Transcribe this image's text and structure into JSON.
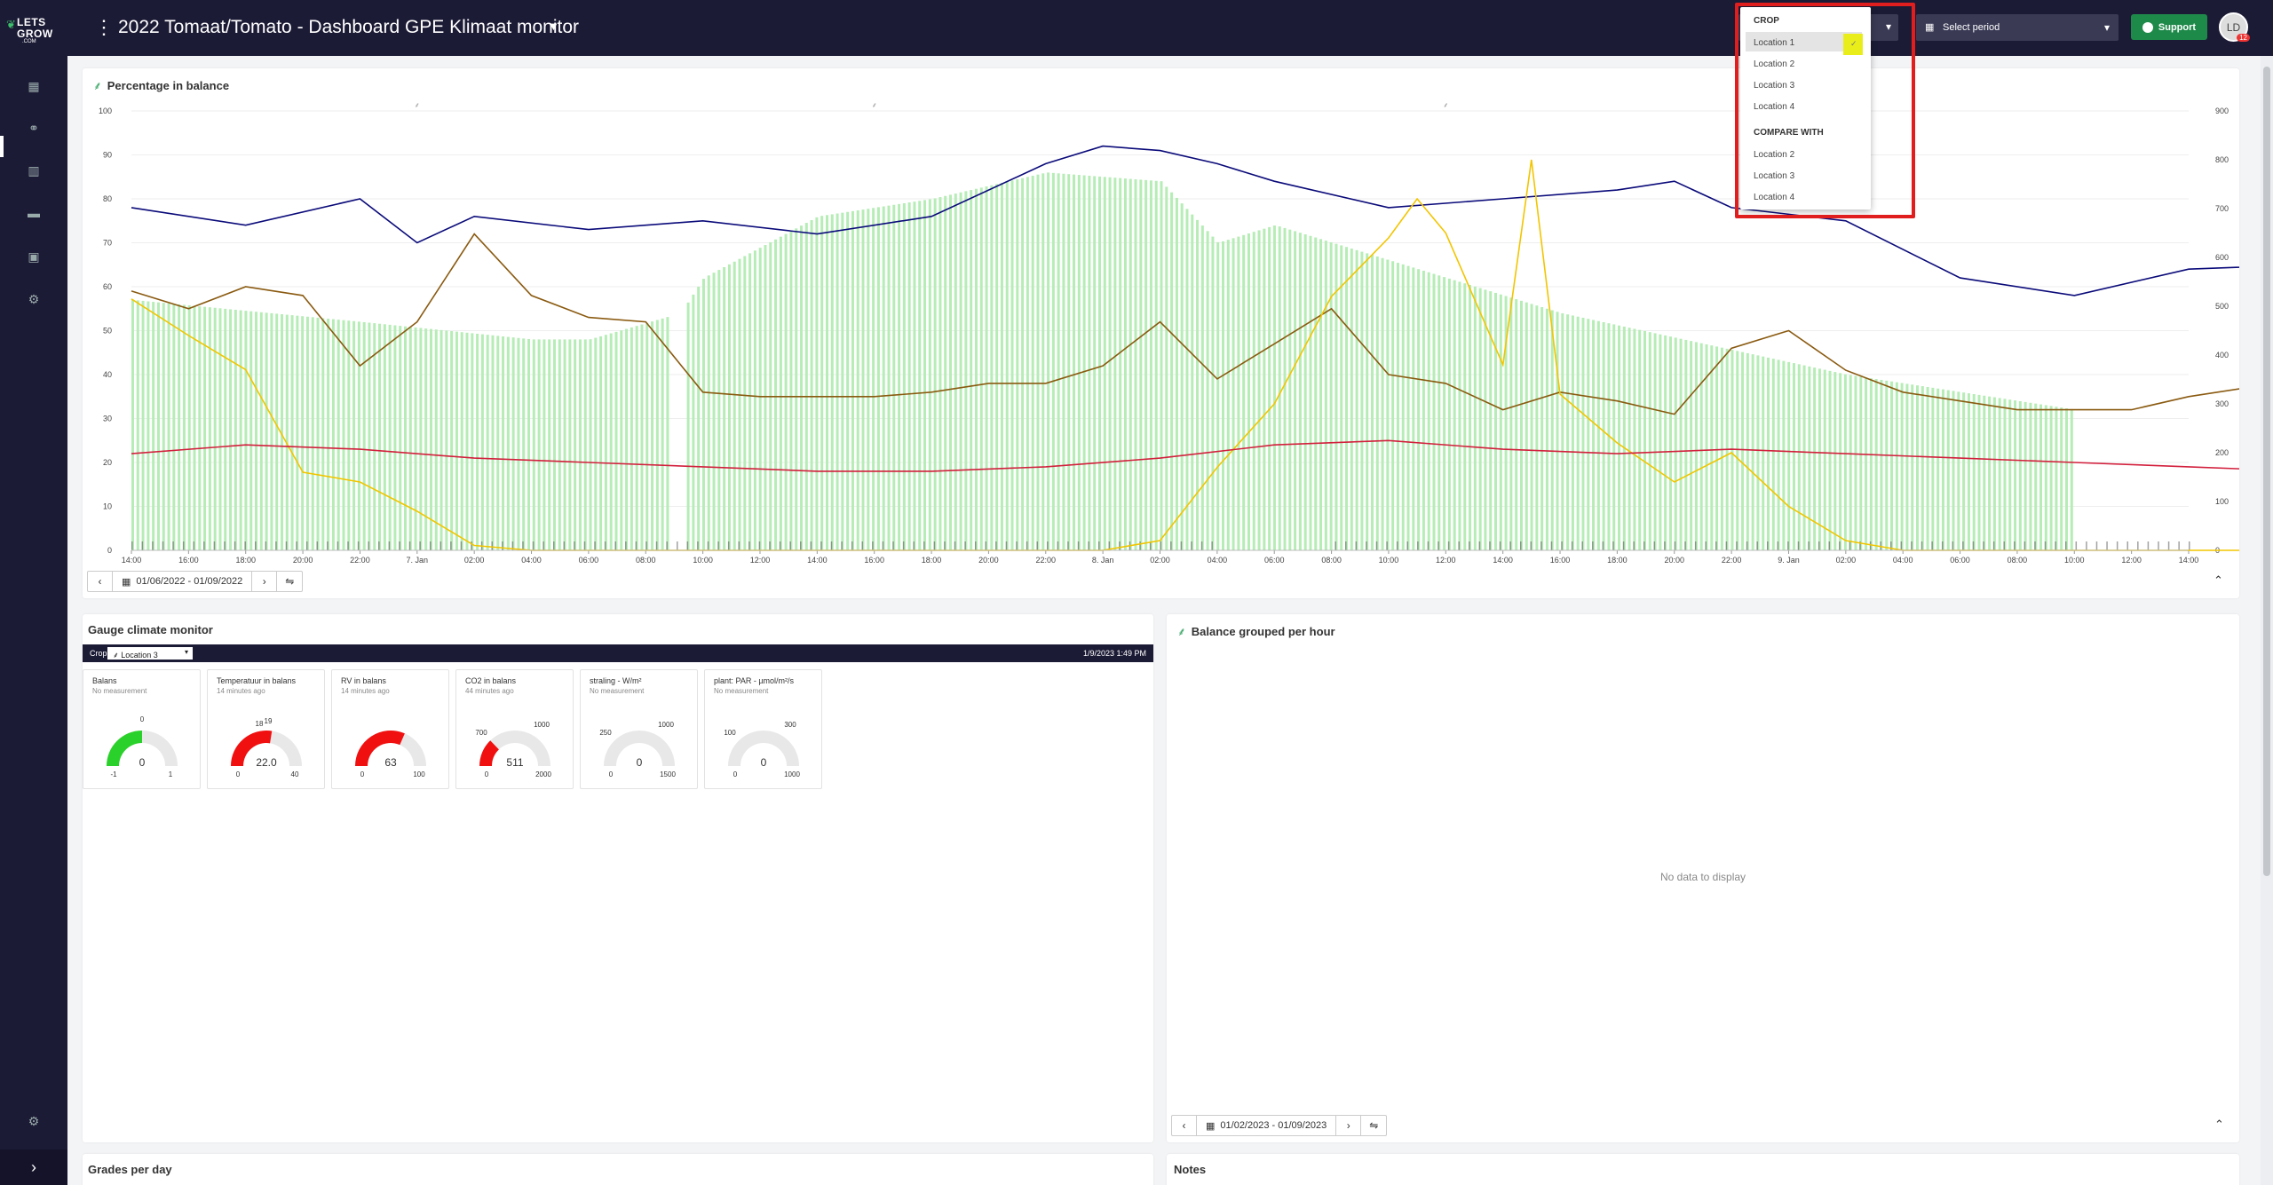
{
  "app": {
    "logo_line1": "LETS",
    "logo_line2": "GROW",
    "logo_line3": ".COM",
    "title": "2022 Tomaat/Tomato - Dashboard GPE Klimaat monitor"
  },
  "header": {
    "period_placeholder": "Select period",
    "support_label": "Support",
    "avatar_initials": "LD",
    "avatar_badge": "12"
  },
  "dropdown": {
    "crop_header": "CROP",
    "crop_options": [
      "Location 1",
      "Location 2",
      "Location 3",
      "Location 4"
    ],
    "selected": "Location 1",
    "compare_header": "COMPARE WITH",
    "compare_options": [
      "Location 2",
      "Location 3",
      "Location 4"
    ]
  },
  "chart_panel": {
    "title": "Percentage in balance",
    "date_range": "01/06/2022 - 01/09/2022"
  },
  "chart_data": {
    "type": "line",
    "y_left": {
      "min": 0,
      "max": 100,
      "ticks": [
        0,
        10,
        20,
        30,
        40,
        50,
        60,
        70,
        80,
        90,
        100
      ]
    },
    "y_right": {
      "min": 0,
      "max": 900,
      "ticks": [
        0,
        100,
        200,
        300,
        400,
        500,
        600,
        700,
        800,
        900
      ]
    },
    "x_ticks": [
      "14:00",
      "16:00",
      "18:00",
      "20:00",
      "22:00",
      "7. Jan",
      "02:00",
      "04:00",
      "06:00",
      "08:00",
      "10:00",
      "12:00",
      "14:00",
      "16:00",
      "18:00",
      "20:00",
      "22:00",
      "8. Jan",
      "02:00",
      "04:00",
      "06:00",
      "08:00",
      "10:00",
      "12:00",
      "14:00",
      "16:00",
      "18:00",
      "20:00",
      "22:00",
      "9. Jan",
      "02:00",
      "04:00",
      "06:00",
      "08:00",
      "10:00",
      "12:00",
      "14:00"
    ],
    "grid": true,
    "colors": {
      "balance": "#b6ecb6",
      "navy": "#0a0a7a",
      "brown": "#8a5a10",
      "yellow": "#f2c500",
      "red": "#d21f3c"
    },
    "balance_bars": [
      {
        "x": 0,
        "value": 57
      },
      {
        "x": 4,
        "value": 52
      },
      {
        "x": 7,
        "value": 48
      },
      {
        "x": 8,
        "value": 48
      },
      {
        "x": 9.6,
        "value": 54
      },
      {
        "x": 10,
        "value": 62
      },
      {
        "x": 12,
        "value": 76
      },
      {
        "x": 14,
        "value": 80
      },
      {
        "x": 16,
        "value": 86
      },
      {
        "x": 18,
        "value": 84
      },
      {
        "x": 19,
        "value": 70
      },
      {
        "x": 20,
        "value": 74
      },
      {
        "x": 25,
        "value": 54
      },
      {
        "x": 30,
        "value": 40
      },
      {
        "x": 34,
        "value": 32
      },
      {
        "x": 39,
        "value": 0
      },
      {
        "x": 40,
        "value": 5
      },
      {
        "x": 42,
        "value": 24
      },
      {
        "x": 43,
        "value": 33
      },
      {
        "x": 45,
        "value": 29
      },
      {
        "x": 50,
        "value": 20
      },
      {
        "x": 58,
        "value": 14
      },
      {
        "x": 63,
        "value": 0
      },
      {
        "x": 64,
        "value": 11
      },
      {
        "x": 66,
        "value": 26
      },
      {
        "x": 67,
        "value": 33
      },
      {
        "x": 69,
        "value": 28
      },
      {
        "x": 72,
        "value": 24
      }
    ],
    "series": [
      {
        "key": "navy",
        "axis": "left",
        "points": [
          [
            0,
            78
          ],
          [
            2,
            74
          ],
          [
            4,
            80
          ],
          [
            5,
            70
          ],
          [
            6,
            76
          ],
          [
            8,
            73
          ],
          [
            10,
            75
          ],
          [
            12,
            72
          ],
          [
            14,
            76
          ],
          [
            16,
            88
          ],
          [
            17,
            92
          ],
          [
            18,
            91
          ],
          [
            19,
            88
          ],
          [
            20,
            84
          ],
          [
            22,
            78
          ],
          [
            24,
            80
          ],
          [
            26,
            82
          ],
          [
            27,
            84
          ],
          [
            28,
            78
          ],
          [
            30,
            75
          ],
          [
            32,
            62
          ],
          [
            34,
            58
          ],
          [
            36,
            64
          ],
          [
            38,
            65
          ],
          [
            40,
            82
          ],
          [
            41,
            88
          ],
          [
            42,
            88
          ],
          [
            43,
            84
          ],
          [
            44,
            75
          ],
          [
            46,
            68
          ],
          [
            48,
            52
          ],
          [
            50,
            50
          ],
          [
            52,
            56
          ],
          [
            54,
            58
          ],
          [
            55,
            64
          ],
          [
            56,
            60
          ],
          [
            58,
            70
          ],
          [
            60,
            74
          ],
          [
            62,
            72
          ],
          [
            64,
            75
          ],
          [
            66,
            80
          ],
          [
            67,
            86
          ],
          [
            68,
            85
          ],
          [
            69,
            80
          ],
          [
            70,
            72
          ],
          [
            72,
            66
          ],
          [
            73,
            63
          ],
          [
            74,
            64
          ],
          [
            75,
            59
          ],
          [
            76,
            62
          ]
        ]
      },
      {
        "key": "brown",
        "axis": "left",
        "points": [
          [
            0,
            59
          ],
          [
            1,
            55
          ],
          [
            2,
            60
          ],
          [
            3,
            58
          ],
          [
            4,
            42
          ],
          [
            5,
            52
          ],
          [
            6,
            72
          ],
          [
            7,
            58
          ],
          [
            8,
            53
          ],
          [
            9,
            52
          ],
          [
            10,
            36
          ],
          [
            11,
            35
          ],
          [
            12,
            35
          ],
          [
            13,
            35
          ],
          [
            14,
            36
          ],
          [
            15,
            38
          ],
          [
            16,
            38
          ],
          [
            17,
            42
          ],
          [
            18,
            52
          ],
          [
            19,
            39
          ],
          [
            20,
            47
          ],
          [
            21,
            55
          ],
          [
            22,
            40
          ],
          [
            23,
            38
          ],
          [
            24,
            32
          ],
          [
            25,
            36
          ],
          [
            26,
            34
          ],
          [
            27,
            31
          ],
          [
            28,
            46
          ],
          [
            29,
            50
          ],
          [
            30,
            41
          ],
          [
            31,
            36
          ],
          [
            32,
            34
          ],
          [
            33,
            32
          ],
          [
            34,
            32
          ],
          [
            35,
            32
          ],
          [
            36,
            35
          ],
          [
            37,
            37
          ],
          [
            38,
            35
          ],
          [
            39,
            32
          ],
          [
            40,
            32
          ],
          [
            41,
            35
          ],
          [
            42,
            36
          ],
          [
            43,
            34
          ],
          [
            44,
            48
          ],
          [
            45,
            40
          ],
          [
            46,
            35
          ],
          [
            47,
            39
          ],
          [
            48,
            46
          ],
          [
            49,
            37
          ],
          [
            50,
            40
          ],
          [
            51,
            44
          ],
          [
            52,
            38
          ],
          [
            53,
            50
          ],
          [
            54,
            44
          ],
          [
            55,
            52
          ],
          [
            56,
            50
          ],
          [
            57,
            62
          ],
          [
            58,
            70
          ],
          [
            59,
            52
          ],
          [
            60,
            34
          ],
          [
            62,
            33
          ],
          [
            64,
            32
          ],
          [
            66,
            31
          ],
          [
            68,
            33
          ],
          [
            69,
            40
          ],
          [
            70,
            65
          ],
          [
            71,
            50
          ],
          [
            72,
            48
          ],
          [
            74,
            50
          ],
          [
            75,
            45
          ],
          [
            76,
            47
          ]
        ]
      },
      {
        "key": "yellow",
        "axis": "right",
        "points": [
          [
            0,
            515
          ],
          [
            1,
            440
          ],
          [
            2,
            370
          ],
          [
            3,
            160
          ],
          [
            4,
            140
          ],
          [
            5,
            80
          ],
          [
            6,
            10
          ],
          [
            7,
            0
          ],
          [
            8,
            0
          ],
          [
            10,
            0
          ],
          [
            12,
            0
          ],
          [
            14,
            0
          ],
          [
            16,
            0
          ],
          [
            17,
            0
          ],
          [
            18,
            20
          ],
          [
            19,
            170
          ],
          [
            20,
            300
          ],
          [
            21,
            520
          ],
          [
            22,
            640
          ],
          [
            22.5,
            720
          ],
          [
            23,
            650
          ],
          [
            24,
            380
          ],
          [
            24.5,
            800
          ],
          [
            25,
            320
          ],
          [
            26,
            220
          ],
          [
            27,
            140
          ],
          [
            28,
            200
          ],
          [
            29,
            90
          ],
          [
            30,
            20
          ],
          [
            31,
            0
          ],
          [
            32,
            0
          ],
          [
            34,
            0
          ],
          [
            36,
            0
          ],
          [
            38,
            0
          ],
          [
            40,
            0
          ],
          [
            42,
            0
          ],
          [
            43,
            60
          ],
          [
            44,
            150
          ],
          [
            45,
            300
          ],
          [
            46,
            380
          ],
          [
            47,
            500
          ],
          [
            48,
            600
          ],
          [
            49,
            730
          ],
          [
            50,
            830
          ],
          [
            51,
            840
          ],
          [
            52,
            790
          ],
          [
            53,
            770
          ],
          [
            54,
            420
          ],
          [
            55,
            130
          ],
          [
            56,
            40
          ],
          [
            58,
            40
          ],
          [
            59,
            0
          ],
          [
            62,
            0
          ],
          [
            64,
            0
          ],
          [
            66,
            0
          ],
          [
            68,
            0
          ],
          [
            69,
            40
          ],
          [
            70,
            100
          ],
          [
            71,
            300
          ],
          [
            72,
            480
          ],
          [
            73,
            620
          ],
          [
            74,
            730
          ],
          [
            75,
            820
          ],
          [
            76,
            835
          ]
        ]
      },
      {
        "key": "red",
        "axis": "left",
        "points": [
          [
            0,
            22
          ],
          [
            2,
            24
          ],
          [
            4,
            23
          ],
          [
            6,
            21
          ],
          [
            8,
            20
          ],
          [
            10,
            19
          ],
          [
            12,
            18
          ],
          [
            14,
            18
          ],
          [
            16,
            19
          ],
          [
            18,
            21
          ],
          [
            20,
            24
          ],
          [
            22,
            25
          ],
          [
            24,
            23
          ],
          [
            26,
            22
          ],
          [
            28,
            23
          ],
          [
            30,
            22
          ],
          [
            32,
            21
          ],
          [
            34,
            20
          ],
          [
            36,
            19
          ],
          [
            38,
            18
          ],
          [
            40,
            17
          ],
          [
            42,
            17
          ],
          [
            44,
            18
          ],
          [
            46,
            20
          ],
          [
            48,
            22
          ],
          [
            50,
            26
          ],
          [
            52,
            29
          ],
          [
            54,
            28
          ],
          [
            56,
            26
          ],
          [
            58,
            25
          ],
          [
            60,
            22
          ],
          [
            62,
            20
          ],
          [
            64,
            18
          ],
          [
            66,
            17
          ],
          [
            68,
            16
          ],
          [
            70,
            17
          ],
          [
            72,
            21
          ],
          [
            74,
            24
          ],
          [
            76,
            24
          ]
        ]
      }
    ]
  },
  "gauge_panel": {
    "title": "Gauge climate monitor",
    "crop_label": "Crop",
    "location": "Location 3",
    "timestamp": "1/9/2023 1:49 PM",
    "gauges": [
      {
        "title": "Balans",
        "sub": "No measurement",
        "value": "0",
        "frac": 0.5,
        "min": "-1",
        "max": "1",
        "extra": [
          "0"
        ],
        "color": "#2ad12a"
      },
      {
        "title": "Temperatuur in balans",
        "sub": "14 minutes ago",
        "value": "22.0",
        "frac": 0.55,
        "min": "0",
        "max": "40",
        "extra": [
          "18",
          "19"
        ],
        "color": "#f01010"
      },
      {
        "title": "RV in balans",
        "sub": "14 minutes ago",
        "value": "63",
        "frac": 0.63,
        "min": "0",
        "max": "100",
        "extra": [],
        "color": "#f01010"
      },
      {
        "title": "CO2 in balans",
        "sub": "44 minutes ago",
        "value": "511",
        "frac": 0.255,
        "min": "0",
        "max": "2000",
        "extra": [
          "700",
          "1000"
        ],
        "color": "#f01010"
      },
      {
        "title": "straling - W/m²",
        "sub": "No measurement",
        "value": "0",
        "frac": 0,
        "min": "0",
        "max": "1500",
        "extra": [
          "250",
          "1000"
        ],
        "color": "#f01010"
      },
      {
        "title": "plant: PAR - µmol/m²/s",
        "sub": "No measurement",
        "value": "0",
        "frac": 0,
        "min": "0",
        "max": "1000",
        "extra": [
          "100",
          "300"
        ],
        "color": "#f01010"
      }
    ]
  },
  "balance_panel": {
    "title": "Balance grouped per hour",
    "no_data": "No data to display",
    "date_range": "01/02/2023 - 01/09/2023"
  },
  "grades_panel": {
    "title": "Grades per day"
  },
  "notes_panel": {
    "title": "Notes"
  }
}
